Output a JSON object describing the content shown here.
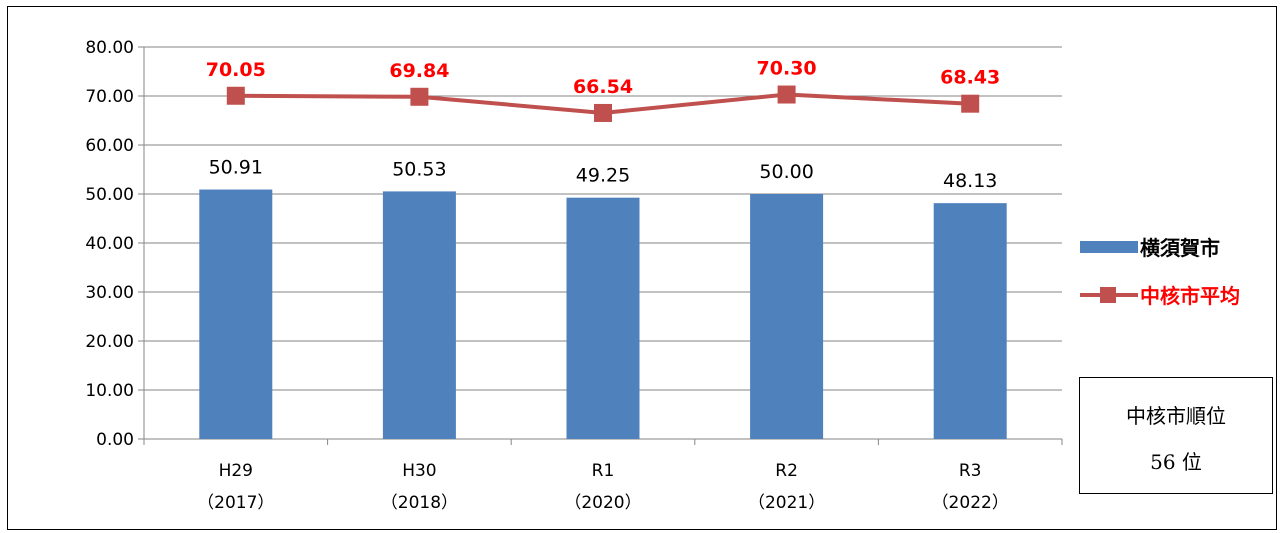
{
  "chart_data": {
    "type": "bar",
    "categories": [
      [
        "H29",
        "（2017）"
      ],
      [
        "H30",
        "（2018）"
      ],
      [
        "R1",
        "（2020）"
      ],
      [
        "R2",
        "（2021）"
      ],
      [
        "R3",
        "（2022）"
      ]
    ],
    "ylim": [
      0,
      80
    ],
    "yticks": [
      "0.00",
      "10.00",
      "20.00",
      "30.00",
      "40.00",
      "50.00",
      "60.00",
      "70.00",
      "80.00"
    ],
    "grid": true,
    "legend_position": "right",
    "series": [
      {
        "name": "横須賀市",
        "type": "bar",
        "color": "#4F81BD",
        "values": [
          50.91,
          50.53,
          49.25,
          50.0,
          48.13
        ],
        "labels": [
          "50.91",
          "50.53",
          "49.25",
          "50.00",
          "48.13"
        ]
      },
      {
        "name": "中核市平均",
        "type": "line",
        "color": "#C0504D",
        "label_color": "#FF0000",
        "values": [
          70.05,
          69.84,
          66.54,
          70.3,
          68.43
        ],
        "labels": [
          "70.05",
          "69.84",
          "66.54",
          "70.30",
          "68.43"
        ]
      }
    ]
  },
  "rank_box": {
    "line1": "中核市順位",
    "line2": "56 位"
  }
}
